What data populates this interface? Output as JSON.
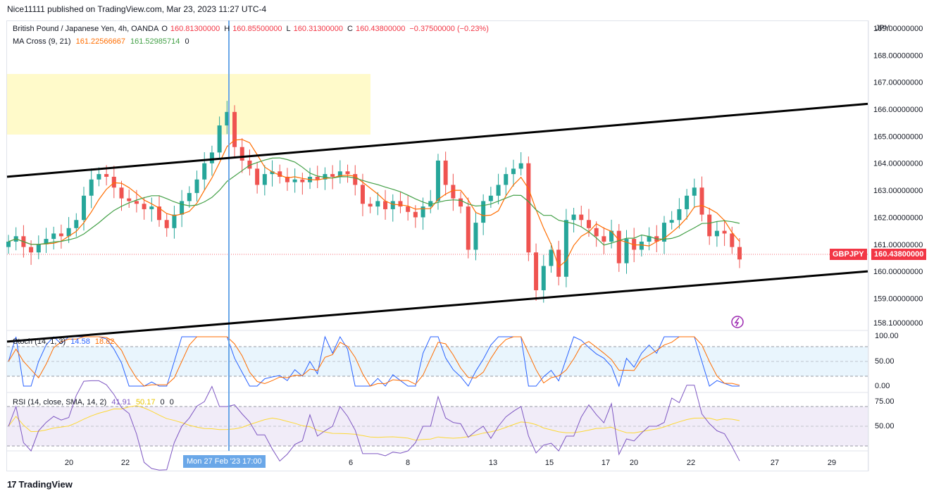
{
  "publish_line": "Nice11111 published on TradingView.com, Mar 23, 2023 11:27 UTC-4",
  "brand": {
    "logo": "17",
    "name": "TradingView"
  },
  "legend": {
    "symbol": "British Pound / Japanese Yen, 4h, OANDA",
    "open_label": "O",
    "open": "160.81300000",
    "high_label": "H",
    "high": "160.85500000",
    "low_label": "L",
    "low": "160.31300000",
    "close_label": "C",
    "close": "160.43800000",
    "change": "−0.37500000 (−0.23%)",
    "ma_label": "MA Cross (9, 21)",
    "ma_fast": "161.22566667",
    "ma_slow": "161.52985714",
    "ma_extra": "0",
    "stoch_label": "Stoch (14, 1, 3)",
    "stoch_k": "14.58",
    "stoch_d": "18.82",
    "rsi_label": "RSI (14, close, SMA, 14, 2)",
    "rsi_value": "41.91",
    "rsi_ma": "50.17",
    "rsi_extra1": "0",
    "rsi_extra2": "0"
  },
  "currency_label": "JPY",
  "price_tag": "160.43800000",
  "symbol_tag": "GBPJPY",
  "time_tag": "Mon 27 Feb '23   17:00",
  "colors": {
    "bull": "#26a69a",
    "bear": "#ef5350",
    "ma_fast": "#ff6d00",
    "ma_slow": "#43a047",
    "stoch_k": "#2962ff",
    "stoch_d": "#ff6d00",
    "rsi": "#7e57c2",
    "rsi_ma": "#fdd835",
    "channel": "#000000",
    "crosshair": "#6aa7e8",
    "zone": "#fff9c4"
  },
  "chart_data": {
    "type": "candlestick",
    "price_axis": {
      "ticks": [
        "169.00000000",
        "168.00000000",
        "167.00000000",
        "166.00000000",
        "165.00000000",
        "164.00000000",
        "163.00000000",
        "162.00000000",
        "161.00000000",
        "160.00000000",
        "159.00000000",
        "158.10000000"
      ],
      "ylim": [
        158.1,
        169.0
      ]
    },
    "x_ticks": [
      "20",
      "22",
      "Mon 27 Feb '23",
      "6",
      "8",
      "13",
      "15",
      "17",
      "20",
      "22",
      "27",
      "29"
    ],
    "stoch_ticks": [
      "100.00",
      "50.00",
      "0.00"
    ],
    "rsi_ticks": [
      "75.00",
      "50.00"
    ],
    "stoch_levels": [
      80,
      20
    ],
    "rsi_levels": [
      70,
      30
    ],
    "close_series": [
      161.1,
      161.3,
      160.9,
      160.7,
      161.0,
      161.2,
      161.4,
      161.3,
      161.6,
      161.9,
      162.8,
      163.4,
      163.6,
      163.5,
      163.1,
      162.7,
      162.6,
      162.5,
      162.3,
      162.4,
      161.9,
      161.6,
      162.1,
      162.6,
      162.9,
      163.4,
      164.0,
      164.4,
      165.4,
      165.9,
      164.6,
      164.1,
      163.8,
      163.2,
      163.6,
      163.7,
      163.5,
      163.3,
      163.4,
      163.3,
      163.5,
      163.4,
      163.6,
      163.5,
      163.7,
      163.6,
      163.2,
      162.5,
      162.4,
      162.6,
      162.3,
      162.6,
      162.4,
      162.2,
      162.0,
      162.4,
      162.6,
      164.1,
      163.2,
      162.7,
      162.4,
      160.8,
      161.8,
      162.6,
      162.8,
      163.2,
      163.6,
      163.8,
      164.0,
      160.7,
      159.3,
      160.2,
      160.8,
      159.8,
      161.9,
      162.1,
      161.9,
      161.6,
      161.3,
      161.1,
      161.5,
      160.3,
      161.2,
      160.8,
      161.1,
      161.3,
      161.1,
      161.8,
      161.9,
      162.3,
      162.8,
      163.1,
      162.1,
      161.3,
      161.5,
      161.4,
      160.9,
      160.44
    ],
    "channel_upper": {
      "from": [
        0,
        163.5
      ],
      "to": [
        1,
        166.2
      ]
    },
    "channel_lower": {
      "from": [
        0,
        157.4
      ],
      "to": [
        1,
        160.0
      ]
    }
  }
}
